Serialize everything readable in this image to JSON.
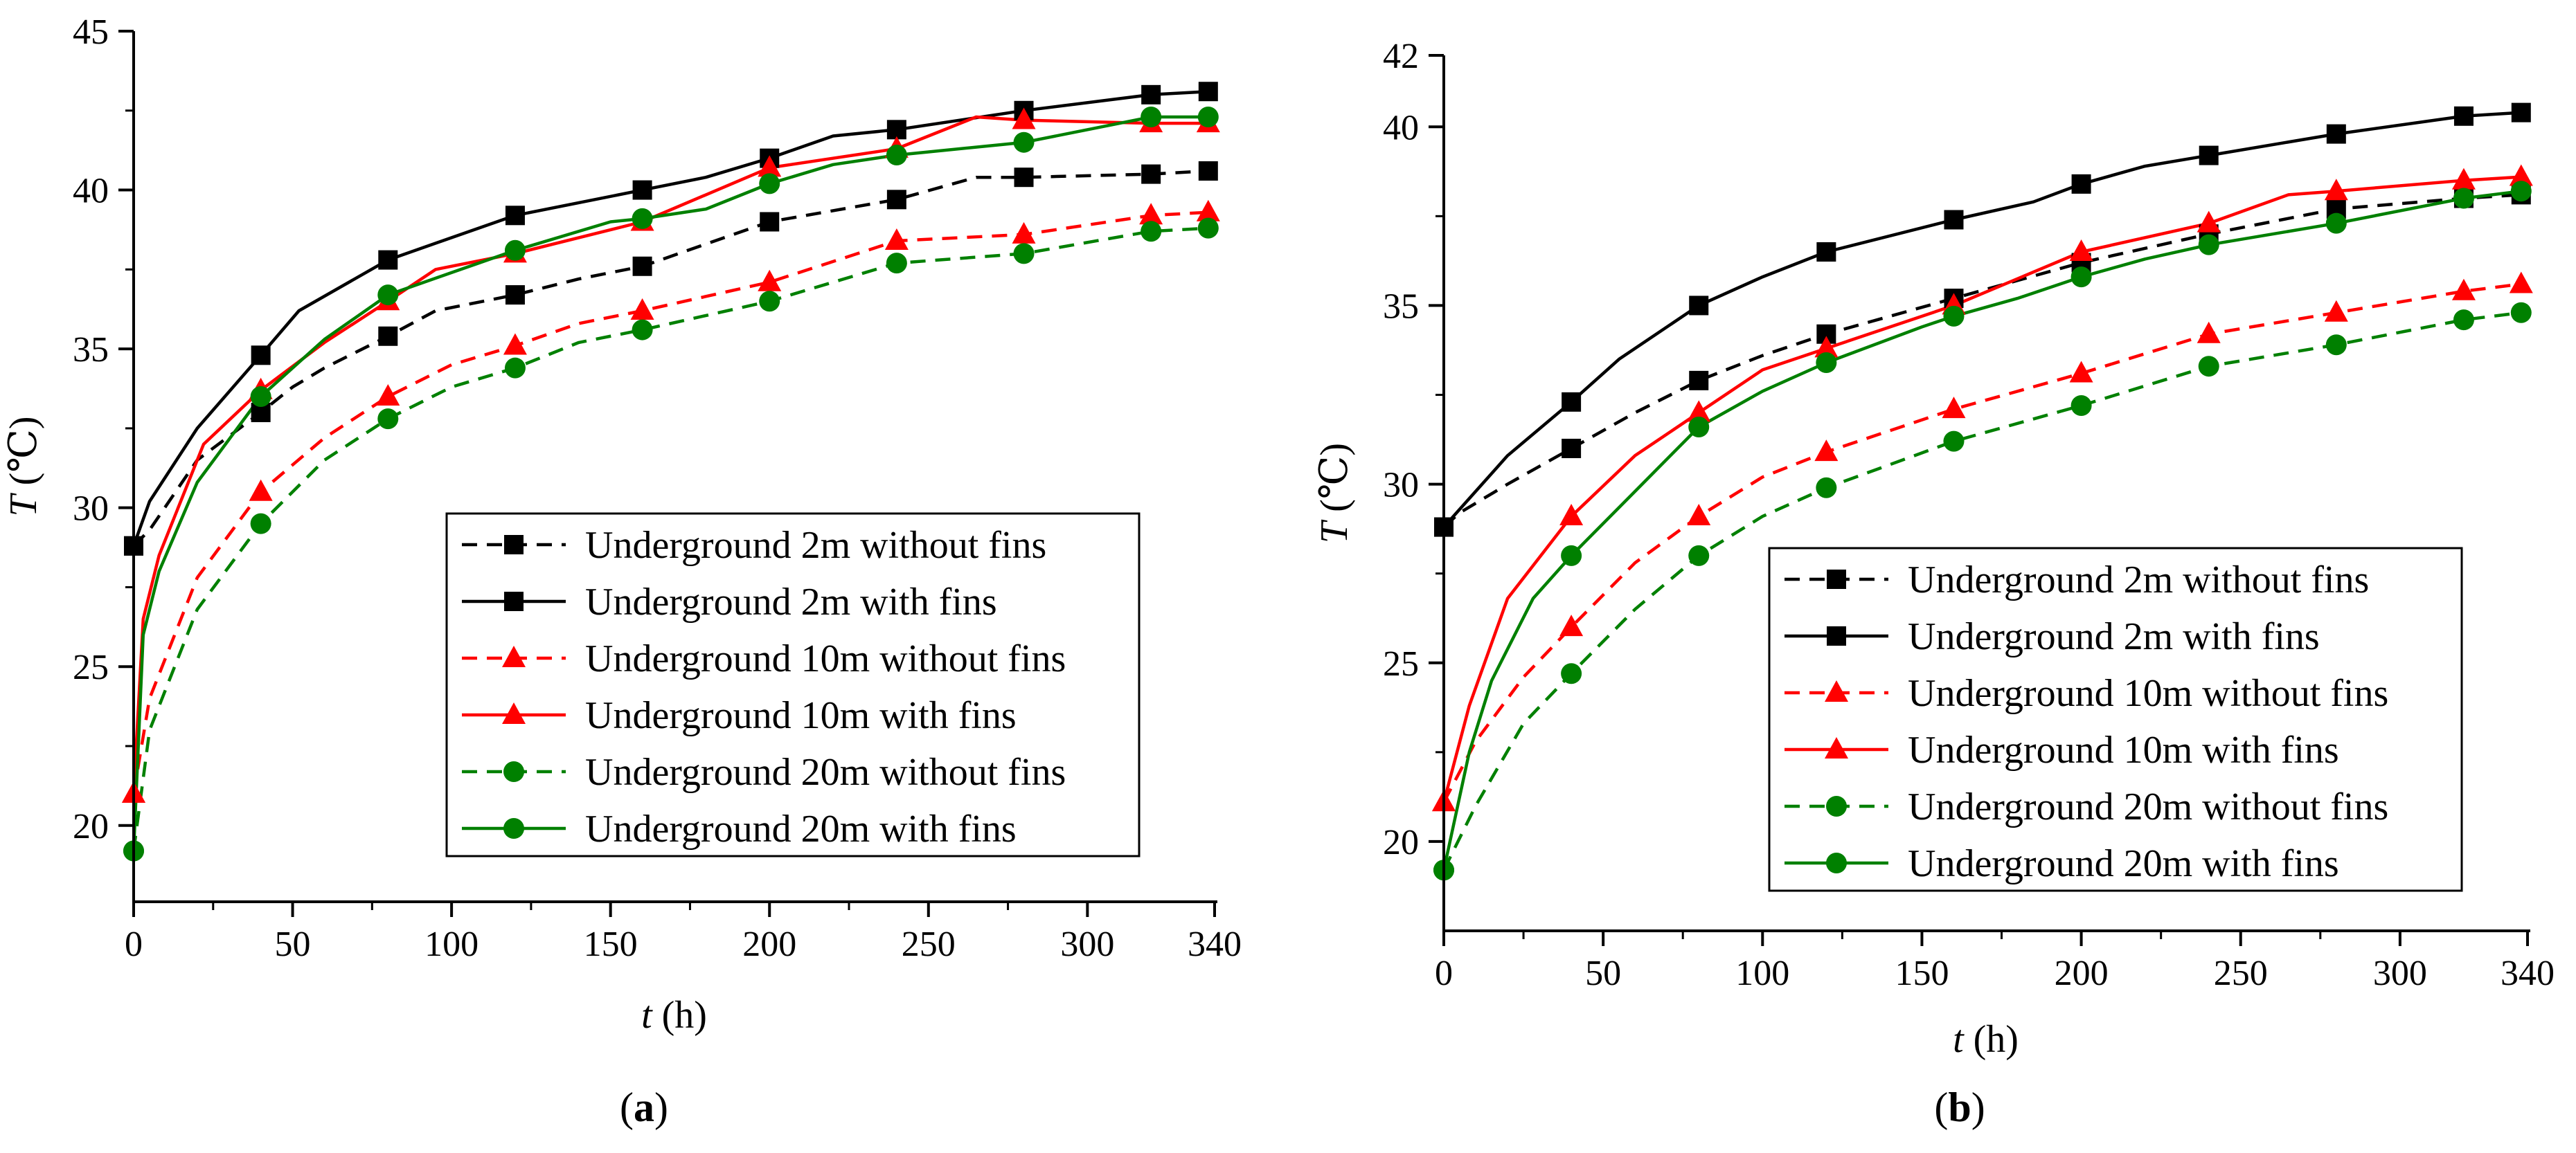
{
  "chart_data": [
    {
      "type": "line",
      "panel_label": "a",
      "xlabel": "t",
      "xunit": "(h)",
      "ylabel": "T",
      "yunit": "(℃)",
      "xlim": [
        0,
        340
      ],
      "ylim": [
        17.6,
        45
      ],
      "xticks": [
        0,
        50,
        100,
        150,
        200,
        250,
        300,
        340
      ],
      "yticks": [
        20,
        25,
        30,
        35,
        40,
        45
      ],
      "legend_position": "lower-right",
      "series": [
        {
          "name": "Underground 2m without fins",
          "color": "#000000",
          "dash": "dashed",
          "marker": "square",
          "x": [
            0,
            5,
            20,
            40,
            50,
            60,
            80,
            95,
            120,
            140,
            160,
            200,
            240,
            265,
            280,
            320,
            338
          ],
          "y": [
            28.8,
            29.3,
            31.5,
            33.0,
            33.8,
            34.4,
            35.4,
            36.2,
            36.7,
            37.2,
            37.6,
            39.0,
            39.7,
            40.4,
            40.4,
            40.5,
            40.6
          ],
          "marker_x": [
            0,
            40,
            80,
            120,
            160,
            200,
            240,
            280,
            320,
            338
          ]
        },
        {
          "name": "Underground 2m with fins",
          "color": "#000000",
          "dash": "solid",
          "marker": "square",
          "x": [
            0,
            5,
            20,
            40,
            52,
            80,
            100,
            120,
            160,
            180,
            200,
            220,
            240,
            280,
            320,
            338
          ],
          "y": [
            28.8,
            30.2,
            32.5,
            34.8,
            36.2,
            37.8,
            38.5,
            39.2,
            40.0,
            40.4,
            41.0,
            41.7,
            41.9,
            42.5,
            43.0,
            43.1
          ],
          "marker_x": [
            0,
            40,
            80,
            120,
            160,
            200,
            240,
            280,
            320,
            338
          ]
        },
        {
          "name": "Underground 10m without fins",
          "color": "#ff0000",
          "dash": "dashed",
          "marker": "triangle",
          "x": [
            0,
            5,
            20,
            40,
            60,
            80,
            100,
            120,
            140,
            160,
            200,
            240,
            280,
            320,
            338
          ],
          "y": [
            21.0,
            24.0,
            27.8,
            30.5,
            32.2,
            33.5,
            34.5,
            35.1,
            35.8,
            36.2,
            37.1,
            38.4,
            38.6,
            39.2,
            39.3
          ],
          "marker_x": [
            0,
            40,
            80,
            120,
            160,
            200,
            240,
            280,
            320,
            338
          ]
        },
        {
          "name": "Underground 10m with fins",
          "color": "#ff0000",
          "dash": "solid",
          "marker": "triangle",
          "x": [
            0,
            3,
            8,
            22,
            40,
            60,
            80,
            95,
            120,
            160,
            200,
            240,
            265,
            280,
            320,
            338
          ],
          "y": [
            21.0,
            26.5,
            28.5,
            32.0,
            33.7,
            35.2,
            36.5,
            37.5,
            38.0,
            39.0,
            40.7,
            41.3,
            42.3,
            42.2,
            42.1,
            42.1
          ],
          "marker_x": [
            0,
            40,
            80,
            120,
            160,
            200,
            240,
            280,
            320,
            338
          ]
        },
        {
          "name": "Underground 20m without fins",
          "color": "#008000",
          "dash": "dashed",
          "marker": "circle",
          "x": [
            0,
            5,
            20,
            40,
            60,
            80,
            100,
            120,
            140,
            160,
            200,
            240,
            280,
            320,
            338
          ],
          "y": [
            19.2,
            23.0,
            26.8,
            29.5,
            31.5,
            32.8,
            33.8,
            34.4,
            35.2,
            35.6,
            36.5,
            37.7,
            38.0,
            38.7,
            38.8
          ],
          "marker_x": [
            0,
            40,
            80,
            120,
            160,
            200,
            240,
            280,
            320,
            338
          ]
        },
        {
          "name": "Underground 20m with fins",
          "color": "#008000",
          "dash": "solid",
          "marker": "circle",
          "x": [
            0,
            3,
            8,
            20,
            40,
            60,
            80,
            100,
            120,
            150,
            160,
            180,
            200,
            220,
            240,
            280,
            320,
            338
          ],
          "y": [
            19.2,
            26.0,
            28.0,
            30.8,
            33.5,
            35.3,
            36.7,
            37.4,
            38.1,
            39.0,
            39.1,
            39.4,
            40.2,
            40.8,
            41.1,
            41.5,
            42.3,
            42.3
          ],
          "marker_x": [
            0,
            40,
            80,
            120,
            160,
            200,
            240,
            280,
            320,
            338
          ]
        }
      ]
    },
    {
      "type": "line",
      "panel_label": "b",
      "xlabel": "t",
      "xunit": "(h)",
      "ylabel": "T",
      "yunit": "(℃)",
      "xlim": [
        0,
        340
      ],
      "ylim": [
        17.5,
        42
      ],
      "xticks": [
        0,
        50,
        100,
        150,
        200,
        250,
        300,
        340
      ],
      "yticks": [
        20,
        25,
        30,
        35,
        40,
        42
      ],
      "legend_position": "lower-right",
      "series": [
        {
          "name": "Underground 2m without fins",
          "color": "#000000",
          "dash": "dashed",
          "marker": "square",
          "x": [
            0,
            5,
            20,
            40,
            60,
            80,
            100,
            120,
            160,
            200,
            240,
            280,
            320,
            338
          ],
          "y": [
            28.8,
            29.2,
            30.0,
            31.0,
            32.0,
            32.9,
            33.6,
            34.2,
            35.2,
            36.2,
            37.0,
            37.7,
            38.0,
            38.1
          ],
          "marker_x": [
            0,
            40,
            80,
            120,
            160,
            200,
            240,
            280,
            320,
            338
          ]
        },
        {
          "name": "Underground 2m with fins",
          "color": "#000000",
          "dash": "solid",
          "marker": "square",
          "x": [
            0,
            5,
            20,
            40,
            55,
            80,
            100,
            120,
            160,
            185,
            200,
            220,
            240,
            280,
            320,
            338
          ],
          "y": [
            28.8,
            29.3,
            30.8,
            32.3,
            33.5,
            35.0,
            35.8,
            36.5,
            37.4,
            37.9,
            38.4,
            38.9,
            39.2,
            39.8,
            40.3,
            40.4
          ],
          "marker_x": [
            0,
            40,
            80,
            120,
            160,
            200,
            240,
            280,
            320,
            338
          ]
        },
        {
          "name": "Underground 10m without fins",
          "color": "#ff0000",
          "dash": "dashed",
          "marker": "triangle",
          "x": [
            0,
            10,
            25,
            40,
            60,
            80,
            100,
            120,
            160,
            200,
            240,
            280,
            320,
            338
          ],
          "y": [
            21.1,
            22.8,
            24.6,
            26.0,
            27.8,
            29.1,
            30.2,
            30.9,
            32.1,
            33.1,
            34.2,
            34.8,
            35.4,
            35.6
          ],
          "marker_x": [
            0,
            40,
            80,
            120,
            160,
            200,
            240,
            280,
            320,
            338
          ]
        },
        {
          "name": "Underground 10m with fins",
          "color": "#ff0000",
          "dash": "solid",
          "marker": "triangle",
          "x": [
            0,
            8,
            20,
            40,
            60,
            80,
            100,
            120,
            160,
            200,
            240,
            265,
            280,
            320,
            338
          ],
          "y": [
            21.1,
            23.8,
            26.8,
            29.1,
            30.8,
            32.0,
            33.2,
            33.8,
            35.0,
            36.5,
            37.3,
            38.1,
            38.2,
            38.5,
            38.6
          ],
          "marker_x": [
            0,
            40,
            80,
            120,
            160,
            200,
            240,
            280,
            320,
            338
          ]
        },
        {
          "name": "Underground 20m without fins",
          "color": "#008000",
          "dash": "dashed",
          "marker": "circle",
          "x": [
            0,
            10,
            25,
            40,
            60,
            80,
            100,
            120,
            160,
            200,
            240,
            280,
            320,
            338
          ],
          "y": [
            19.2,
            21.0,
            23.3,
            24.7,
            26.5,
            28.0,
            29.1,
            29.9,
            31.2,
            32.2,
            33.3,
            33.9,
            34.6,
            34.8
          ],
          "marker_x": [
            0,
            40,
            80,
            120,
            160,
            200,
            240,
            280,
            320,
            338
          ]
        },
        {
          "name": "Underground 20m with fins",
          "color": "#008000",
          "dash": "solid",
          "marker": "circle",
          "x": [
            0,
            8,
            15,
            28,
            40,
            60,
            80,
            100,
            120,
            150,
            160,
            180,
            200,
            220,
            240,
            280,
            320,
            338
          ],
          "y": [
            19.2,
            22.5,
            24.5,
            26.8,
            28.0,
            29.8,
            31.6,
            32.6,
            33.4,
            34.4,
            34.7,
            35.2,
            35.8,
            36.3,
            36.7,
            37.3,
            38.0,
            38.2
          ],
          "marker_x": [
            0,
            40,
            80,
            120,
            160,
            200,
            240,
            280,
            320,
            338
          ]
        }
      ]
    }
  ]
}
